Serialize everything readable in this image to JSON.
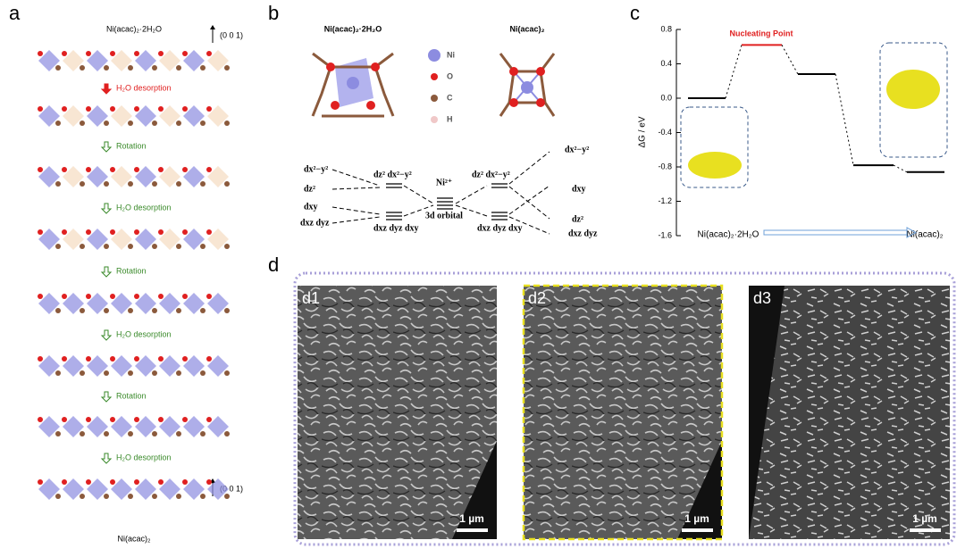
{
  "panel_a": {
    "label": "a",
    "top_title": "Ni(acac)₂·2H₂O",
    "axis_label_top": "(0 0 1)",
    "steps": [
      "H₂O desorption",
      "Rotation",
      "H₂O desorption",
      "Rotation",
      "H₂O desorption",
      "Rotation",
      "H₂O desorption"
    ],
    "axis_label_bottom": "(0 0 1)",
    "bottom_title": "Ni(acac)₂"
  },
  "panel_b": {
    "label": "b",
    "molecules": [
      "Ni(acac)₂·2H₂O",
      "Ni(acac)₂"
    ],
    "legend": [
      {
        "symbol": "Ni",
        "color": "#8c8ce0"
      },
      {
        "symbol": "O",
        "color": "#e02020"
      },
      {
        "symbol": "C",
        "color": "#8b5a3c"
      },
      {
        "symbol": "H",
        "color": "#f0c8c8"
      }
    ],
    "orbitals": {
      "left": [
        "dx²−y²",
        "dz²",
        "dxy",
        "dxz dyz"
      ],
      "left_split": [
        "dz² dx²−y²",
        "dxz dyz dxy"
      ],
      "center": [
        "Ni²⁺",
        "3d orbital"
      ],
      "right_split": [
        "dz² dx²−y²",
        "dxz dyz dxy"
      ],
      "right": [
        "dx²−y²",
        "dxy",
        "dz²",
        "dxz dyz"
      ]
    }
  },
  "panel_c": {
    "label": "c",
    "y_label": "ΔG / eV",
    "ylim": [
      -1.6,
      0.8
    ],
    "yticks": [
      0.8,
      0.4,
      {
        "value": 0,
        "label": "0.0"
      },
      -0.4,
      -0.8,
      -1.2,
      -1.6
    ],
    "levels": [
      0,
      0.62,
      0.28,
      -0.78,
      -0.86
    ],
    "level_colors": [
      "#000000",
      "#e02020",
      "#000000",
      "#000000",
      "#000000"
    ],
    "annotation": "Nucleating Point",
    "x_start": "Ni(acac)₂·2H₂O",
    "x_end": "Ni(acac)₂"
  },
  "panel_d": {
    "label": "d",
    "images": [
      {
        "label": "d1",
        "scale": "1 µm"
      },
      {
        "label": "d2",
        "scale": "1 µm"
      },
      {
        "label": "d3",
        "scale": "1 µm"
      }
    ]
  }
}
